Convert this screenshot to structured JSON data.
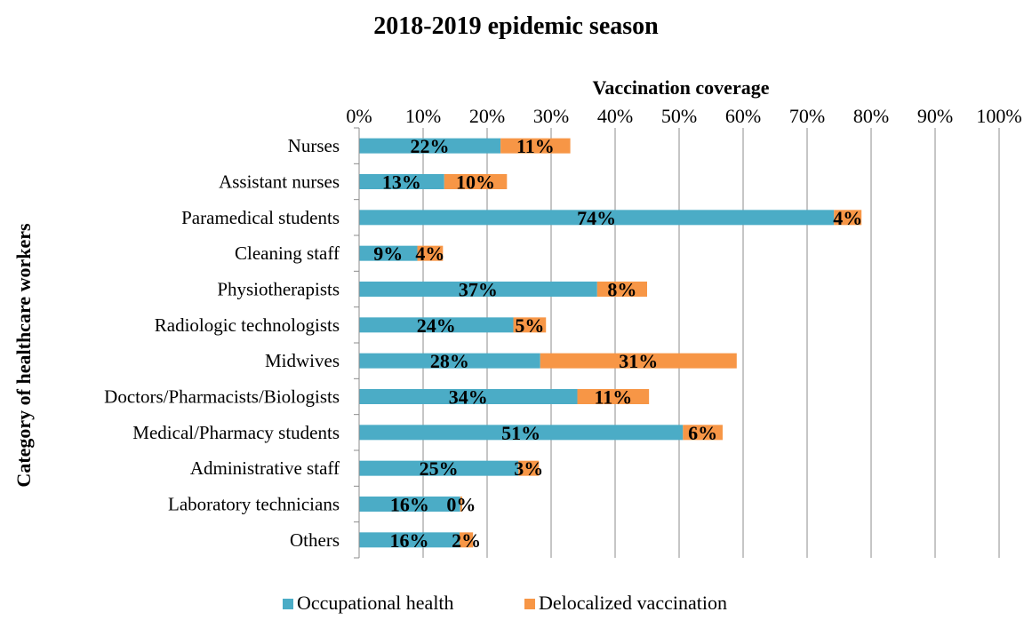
{
  "chart_data": {
    "type": "bar",
    "orientation": "horizontal",
    "stacked": true,
    "title": "2018-2019 epidemic season",
    "xlabel": "Vaccination coverage",
    "ylabel": "Category of healthcare workers",
    "xlim": [
      0,
      100
    ],
    "x_ticks": [
      "0%",
      "10%",
      "20%",
      "30%",
      "40%",
      "50%",
      "60%",
      "70%",
      "80%",
      "90%",
      "100%"
    ],
    "x_axis_position": "top",
    "grid": true,
    "legend_position": "bottom",
    "categories": [
      "Nurses",
      "Assistant nurses",
      "Paramedical students",
      "Cleaning staff",
      "Physiotherapists",
      "Radiologic technologists",
      "Midwives",
      "Doctors/Pharmacists/Biologists",
      "Medical/Pharmacy students",
      "Administrative staff",
      "Laboratory technicians",
      "Others"
    ],
    "series": [
      {
        "name": "Occupational health",
        "color": "#4bacc6",
        "values": [
          22.1,
          13.3,
          74.2,
          9.1,
          37.2,
          24.1,
          28.3,
          34.1,
          50.6,
          24.9,
          15.8,
          15.7
        ],
        "labels": [
          "22%",
          "13%",
          "74%",
          "9%",
          "37%",
          "24%",
          "28%",
          "34%",
          "51%",
          "25%",
          "16%",
          "16%"
        ]
      },
      {
        "name": "Delocalized vaccination",
        "color": "#f79646",
        "values": [
          10.9,
          9.8,
          4.3,
          4.0,
          7.8,
          5.1,
          30.7,
          11.2,
          6.2,
          3.2,
          0.3,
          2.1
        ],
        "labels": [
          "11%",
          "10%",
          "4%",
          "4%",
          "8%",
          "5%",
          "31%",
          "11%",
          "6%",
          "3%",
          "0%",
          "2%"
        ]
      }
    ]
  }
}
